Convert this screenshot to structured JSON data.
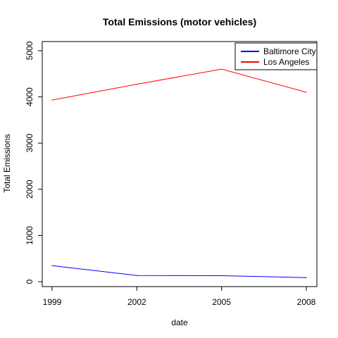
{
  "chart_data": {
    "type": "line",
    "title": "Total Emissions (motor vehicles)",
    "xlabel": "date",
    "ylabel": "Total Emissions",
    "x": [
      1999,
      2002,
      2005,
      2008
    ],
    "xticks": [
      "1999",
      "2002",
      "2005",
      "2008"
    ],
    "yticks": [
      "0",
      "1000",
      "2000",
      "3000",
      "4000",
      "5000"
    ],
    "ylim": [
      0,
      5000
    ],
    "xlim": [
      1999,
      2008
    ],
    "legend_position": "top-right",
    "series": [
      {
        "name": "Baltimore City",
        "color": "#0000ff",
        "values": [
          346,
          134,
          130,
          88
        ]
      },
      {
        "name": "Los Angeles",
        "color": "#ff0000",
        "values": [
          3931,
          4274,
          4601,
          4101
        ]
      }
    ]
  }
}
